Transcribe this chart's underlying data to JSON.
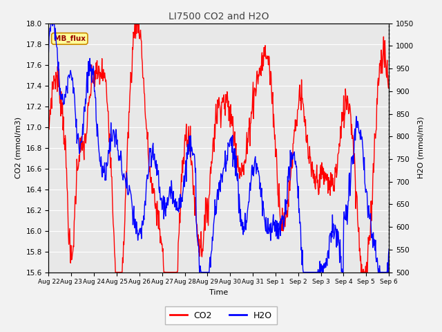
{
  "title": "LI7500 CO2 and H2O",
  "xlabel": "Time",
  "ylabel_left": "CO2 (mmol/m3)",
  "ylabel_right": "H2O (mmol/m3)",
  "co2_color": "#ff0000",
  "h2o_color": "#0000ff",
  "co2_ylim": [
    15.6,
    18.0
  ],
  "h2o_ylim": [
    500,
    1050
  ],
  "x_tick_labels": [
    "Aug 22",
    "Aug 23",
    "Aug 24",
    "Aug 25",
    "Aug 26",
    "Aug 27",
    "Aug 28",
    "Aug 29",
    "Aug 30",
    "Aug 31",
    "Sep 1",
    "Sep 2",
    "Sep 3",
    "Sep 4",
    "Sep 5",
    "Sep 6"
  ],
  "legend_label_co2": "CO2",
  "legend_label_h2o": "H2O",
  "annotation_text": "MB_flux",
  "background_color": "#f2f2f2",
  "plot_bg_color": "#e8e8e8",
  "grid_color": "white",
  "line_width": 1.0,
  "co2_ticks": [
    15.6,
    15.8,
    16.0,
    16.2,
    16.4,
    16.6,
    16.8,
    17.0,
    17.2,
    17.4,
    17.6,
    17.8,
    18.0
  ],
  "h2o_ticks": [
    500,
    550,
    600,
    650,
    700,
    750,
    800,
    850,
    900,
    950,
    1000,
    1050
  ]
}
